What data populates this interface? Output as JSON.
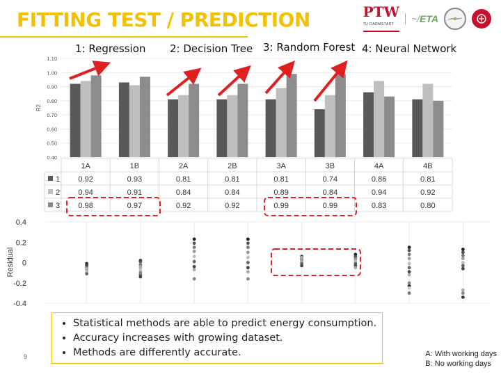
{
  "header": {
    "title": "FITTING TEST / PREDICTION"
  },
  "logos": {
    "ptw": "PTW",
    "ptw_sub": "TU DARMSTADT",
    "eta": "ETA"
  },
  "models": [
    "1: Regression",
    "2: Decision Tree",
    "3: Random Forest",
    "4: Neural Network"
  ],
  "colors": {
    "series1": "#595959",
    "series2": "#bfbfbf",
    "series3": "#8c8c8c",
    "accent_yellow": "#f2c200",
    "highlight_red": "#e02020"
  },
  "chart_data": [
    {
      "type": "bar",
      "ylabel": "R2",
      "ylim": [
        0.4,
        1.1
      ],
      "yticks": [
        "0.40",
        "0.50",
        "0.60",
        "0.70",
        "0.80",
        "0.90",
        "1.00",
        "1.10"
      ],
      "categories": [
        "1A",
        "1B",
        "2A",
        "2B",
        "3A",
        "3B",
        "4A",
        "4B"
      ],
      "series": [
        {
          "name": "1",
          "values": [
            0.92,
            0.93,
            0.81,
            0.81,
            0.81,
            0.74,
            0.86,
            0.81
          ],
          "labels": [
            "0.92",
            "0.93",
            "0.81",
            "0.81",
            "0.81",
            "0.74",
            "0.86",
            "0.81"
          ]
        },
        {
          "name": "2",
          "values": [
            0.94,
            0.91,
            0.84,
            0.84,
            0.89,
            0.84,
            0.94,
            0.92
          ],
          "labels": [
            "0.94",
            "0.91",
            "0.84",
            "0.84",
            "0.89",
            "0.84",
            "0.94",
            "0.92"
          ]
        },
        {
          "name": "3",
          "values": [
            0.98,
            0.97,
            0.92,
            0.92,
            0.99,
            0.99,
            0.83,
            0.8
          ],
          "labels": [
            "0.98",
            "0.97",
            "0.92",
            "0.92",
            "0.99",
            "0.99",
            "0.83",
            "0.80"
          ]
        }
      ],
      "legend": "data-table"
    },
    {
      "type": "scatter",
      "ylabel": "Residual",
      "ylim": [
        -0.4,
        0.4
      ],
      "yticks": [
        "0.4",
        "0.2",
        "0",
        "-0.2",
        "-0.4"
      ],
      "categories": [
        "1A",
        "1B",
        "2A",
        "2B",
        "3A",
        "3B",
        "4A",
        "4B"
      ],
      "points": [
        [
          -0.01,
          -0.03,
          -0.05,
          -0.07,
          -0.09,
          -0.11,
          -0.02,
          -0.06
        ],
        [
          0.02,
          0.01,
          -0.02,
          -0.04,
          -0.08,
          -0.12,
          -0.14,
          -0.05,
          -0.1
        ],
        [
          0.23,
          0.19,
          0.15,
          0.11,
          0.06,
          0.01,
          -0.04,
          -0.07,
          -0.16
        ],
        [
          0.23,
          0.19,
          0.15,
          0.1,
          0.05,
          0.0,
          -0.05,
          -0.09,
          -0.16
        ],
        [
          0.06,
          0.04,
          0.03,
          0.02,
          0.0,
          -0.01,
          -0.03,
          0.05
        ],
        [
          0.08,
          0.06,
          0.04,
          0.03,
          0.01,
          -0.01,
          -0.03,
          -0.05
        ],
        [
          0.15,
          0.12,
          0.08,
          0.04,
          -0.01,
          -0.05,
          -0.09,
          -0.12,
          -0.2,
          -0.23,
          -0.25,
          -0.3
        ],
        [
          0.13,
          0.1,
          0.07,
          0.04,
          0.0,
          -0.03,
          -0.06,
          -0.27,
          -0.3,
          -0.34
        ]
      ]
    }
  ],
  "bullets": [
    "Statistical methods are able to predict energy consumption.",
    "Accuracy increases with growing dataset.",
    "Methods are differently accurate."
  ],
  "page_number": "9",
  "notes": {
    "a": "A: With working days",
    "b": "B: No working days"
  }
}
